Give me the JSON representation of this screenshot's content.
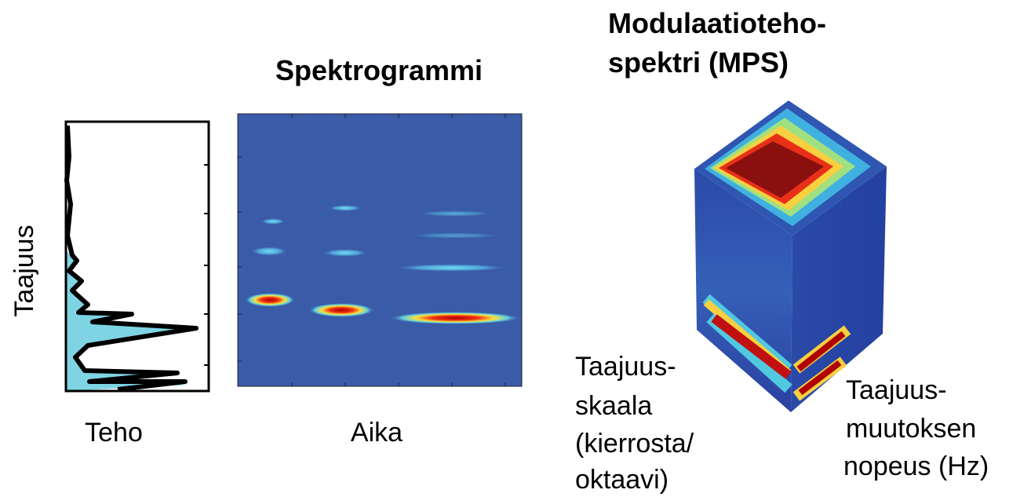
{
  "power_panel": {
    "y_label": "Taajuus",
    "x_label": "Teho"
  },
  "spectrogram": {
    "title": "Spektrogrammi",
    "x_label": "Aika"
  },
  "mps": {
    "title_lines": [
      "Modulaatioteho-",
      "spektri (MPS)"
    ],
    "left_axis_label_lines": [
      "Taajuus-",
      "skaala",
      "(kierrosta/",
      "oktaavi)"
    ],
    "right_axis_label_lines": [
      "Taajuus-",
      "muutoksen",
      "nopeus (Hz)"
    ]
  }
}
